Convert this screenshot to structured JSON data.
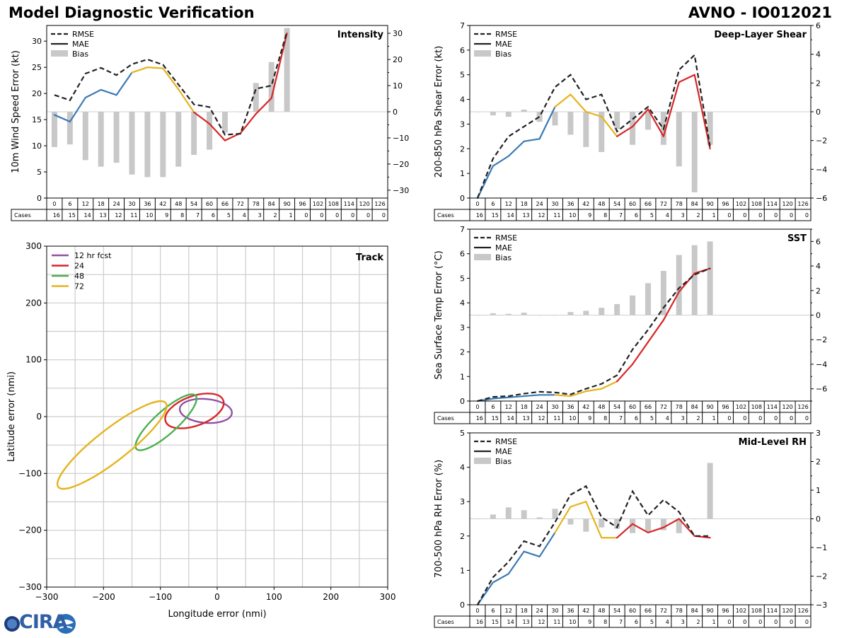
{
  "header": {
    "title_left": "Model Diagnostic Verification",
    "title_right": "AVNO - IO012021"
  },
  "logo": {
    "text": "CIRA",
    "icon_name": "cira-globe-logo"
  },
  "colors": {
    "rmse": "#222222",
    "mae_early": "#3a7ab5",
    "mae_mid": "#e6b31e",
    "mae_late": "#d62728",
    "bias": "#c8c8c8",
    "track_12": "#944fa3",
    "track_24": "#d62728",
    "track_48": "#4caf50",
    "track_72": "#e6b31e",
    "grid": "#cccccc"
  },
  "legend_labels": {
    "rmse": "RMSE",
    "mae": "MAE",
    "bias": "Bias"
  },
  "cases_label": "Cases",
  "chart_data": [
    {
      "id": "intensity",
      "type": "line+bar",
      "title": "Intensity",
      "ylabel": "10m Wind Speed Error (kt)",
      "ylim": [
        0,
        33
      ],
      "yticks": [
        0,
        5,
        10,
        15,
        20,
        25,
        30
      ],
      "y2lim": [
        -33,
        33
      ],
      "y2ticks": [
        -30,
        -20,
        -10,
        0,
        10,
        20,
        30
      ],
      "x": [
        0,
        6,
        12,
        18,
        24,
        30,
        36,
        42,
        48,
        54,
        60,
        66,
        72,
        78,
        84,
        90
      ],
      "rmse": [
        19.7,
        18.7,
        23.8,
        24.9,
        23.5,
        25.6,
        26.5,
        25.5,
        21.7,
        17.9,
        17.4,
        12.1,
        12.3,
        20.9,
        21.5,
        31.8
      ],
      "mae": [
        15.9,
        14.6,
        19.2,
        20.7,
        19.7,
        24.0,
        25.0,
        24.8,
        20.8,
        16.4,
        14.2,
        11.0,
        12.4,
        16.1,
        19.1,
        31.5
      ],
      "bias": [
        -13.5,
        -12.5,
        -18.5,
        -21,
        -19.5,
        -24,
        -25,
        -25,
        -21,
        -16.5,
        -14.5,
        -8,
        0,
        11,
        19,
        32
      ],
      "categories": [
        "0",
        "6",
        "12",
        "18",
        "24",
        "30",
        "36",
        "42",
        "48",
        "54",
        "60",
        "66",
        "72",
        "78",
        "84",
        "90",
        "96",
        "102",
        "108",
        "114",
        "120",
        "126"
      ],
      "cases": [
        16,
        15,
        14,
        13,
        12,
        11,
        10,
        9,
        8,
        7,
        6,
        5,
        4,
        3,
        2,
        1,
        0,
        0,
        0,
        0,
        0,
        0
      ]
    },
    {
      "id": "shear",
      "type": "line+bar",
      "title": "Deep-Layer Shear",
      "ylabel": "200-850 hPa Shear Error (kt)",
      "ylim": [
        0,
        7
      ],
      "yticks": [
        0,
        1,
        2,
        3,
        4,
        5,
        6,
        7
      ],
      "y2lim": [
        -6,
        6
      ],
      "y2ticks": [
        -6,
        -4,
        -2,
        0,
        2,
        4,
        6
      ],
      "x": [
        0,
        6,
        12,
        18,
        24,
        30,
        36,
        42,
        48,
        54,
        60,
        66,
        72,
        78,
        84,
        90
      ],
      "rmse": [
        0.0,
        1.6,
        2.5,
        2.9,
        3.3,
        4.5,
        5.0,
        4.0,
        4.2,
        2.7,
        3.2,
        3.7,
        2.8,
        5.2,
        5.8,
        2.1
      ],
      "mae": [
        0.0,
        1.3,
        1.7,
        2.3,
        2.4,
        3.7,
        4.2,
        3.5,
        3.3,
        2.5,
        2.9,
        3.6,
        2.5,
        4.7,
        5.0,
        2.0
      ],
      "bias": [
        0.0,
        -0.25,
        -0.35,
        0.15,
        -0.7,
        -0.95,
        -1.6,
        -2.45,
        -2.8,
        -1.2,
        -2.3,
        -1.25,
        -2.3,
        -3.8,
        -5.6,
        -2.3
      ],
      "categories": [
        "0",
        "6",
        "12",
        "18",
        "24",
        "30",
        "36",
        "42",
        "48",
        "54",
        "60",
        "66",
        "72",
        "78",
        "84",
        "90",
        "96",
        "102",
        "108",
        "114",
        "120",
        "126"
      ],
      "cases": [
        16,
        15,
        14,
        13,
        12,
        11,
        10,
        9,
        8,
        7,
        6,
        5,
        4,
        3,
        2,
        1,
        0,
        0,
        0,
        0,
        0,
        0
      ]
    },
    {
      "id": "sst",
      "type": "line+bar",
      "title": "SST",
      "ylabel": "Sea Surface Temp Error (°C)",
      "ylim": [
        0,
        7
      ],
      "yticks": [
        0,
        1,
        2,
        3,
        4,
        5,
        6,
        7
      ],
      "y2lim": [
        -7,
        7
      ],
      "y2ticks": [
        -6,
        -4,
        -2,
        0,
        2,
        4,
        6
      ],
      "x": [
        0,
        6,
        12,
        18,
        24,
        30,
        36,
        42,
        48,
        54,
        60,
        66,
        72,
        78,
        84,
        90
      ],
      "rmse": [
        0.0,
        0.17,
        0.2,
        0.3,
        0.38,
        0.35,
        0.27,
        0.5,
        0.7,
        1.05,
        2.1,
        2.9,
        3.8,
        4.6,
        5.15,
        5.4
      ],
      "mae": [
        0.0,
        0.1,
        0.15,
        0.2,
        0.25,
        0.25,
        0.2,
        0.4,
        0.5,
        0.8,
        1.5,
        2.4,
        3.3,
        4.45,
        5.2,
        5.4
      ],
      "bias": [
        0.0,
        0.15,
        0.1,
        0.2,
        0.0,
        0.0,
        0.25,
        0.35,
        0.6,
        0.9,
        1.6,
        2.6,
        3.6,
        4.9,
        5.7,
        6.0
      ],
      "categories": [
        "0",
        "6",
        "12",
        "18",
        "24",
        "30",
        "36",
        "42",
        "48",
        "54",
        "60",
        "66",
        "72",
        "78",
        "84",
        "90",
        "96",
        "102",
        "108",
        "114",
        "120",
        "126"
      ],
      "cases": [
        16,
        15,
        14,
        13,
        12,
        11,
        10,
        9,
        8,
        7,
        6,
        5,
        4,
        3,
        2,
        1,
        0,
        0,
        0,
        0,
        0,
        0
      ]
    },
    {
      "id": "rh",
      "type": "line+bar",
      "title": "Mid-Level RH",
      "ylabel": "700-500 hPa RH Error (%)",
      "ylim": [
        0,
        5
      ],
      "yticks": [
        0,
        1,
        2,
        3,
        4,
        5
      ],
      "y2lim": [
        -3,
        3
      ],
      "y2ticks": [
        -3,
        -2,
        -1,
        0,
        1,
        2,
        3
      ],
      "x": [
        0,
        6,
        12,
        18,
        24,
        30,
        36,
        42,
        48,
        54,
        60,
        66,
        72,
        78,
        84,
        90
      ],
      "rmse": [
        0.0,
        0.8,
        1.25,
        1.85,
        1.7,
        2.4,
        3.2,
        3.45,
        2.55,
        2.25,
        3.3,
        2.6,
        3.05,
        2.7,
        2.0,
        2.0
      ],
      "mae": [
        0.0,
        0.65,
        0.9,
        1.55,
        1.4,
        2.1,
        2.85,
        3.0,
        1.95,
        1.95,
        2.35,
        2.1,
        2.25,
        2.5,
        2.0,
        1.95
      ],
      "bias": [
        0.0,
        0.15,
        0.4,
        0.3,
        0.05,
        0.35,
        -0.2,
        -0.45,
        -0.3,
        -0.35,
        -0.5,
        -0.45,
        -0.4,
        -0.5,
        0.0,
        1.95
      ],
      "categories": [
        "0",
        "6",
        "12",
        "18",
        "24",
        "30",
        "36",
        "42",
        "48",
        "54",
        "60",
        "66",
        "72",
        "78",
        "84",
        "90",
        "96",
        "102",
        "108",
        "114",
        "120",
        "126"
      ],
      "cases": [
        16,
        15,
        14,
        13,
        12,
        11,
        10,
        9,
        8,
        7,
        6,
        5,
        4,
        3,
        2,
        1,
        0,
        0,
        0,
        0,
        0,
        0
      ]
    },
    {
      "id": "track",
      "type": "ellipse",
      "title": "Track",
      "xlabel": "Longitude error (nmi)",
      "ylabel": "Latitude error (nmi)",
      "xlim": [
        -300,
        300
      ],
      "ylim": [
        -300,
        300
      ],
      "xticks": [
        -300,
        -200,
        -100,
        0,
        100,
        200,
        300
      ],
      "yticks": [
        -300,
        -200,
        -100,
        0,
        100,
        200,
        300
      ],
      "tick_labels_x": [
        "−300",
        "−200",
        "−100",
        "0",
        "100",
        "200",
        "300"
      ],
      "tick_labels_y": [
        "−300",
        "−200",
        "−100",
        "0",
        "100",
        "200",
        "300"
      ],
      "grid_step": 50,
      "series": [
        {
          "name": "12 hr fcst",
          "cx": -20,
          "cy": 10,
          "semi_major": 46,
          "semi_minor": 21,
          "angle_deg": -5,
          "color_key": "track_12"
        },
        {
          "name": "24",
          "cx": -40,
          "cy": 10,
          "semi_major": 54,
          "semi_minor": 26,
          "angle_deg": 20,
          "color_key": "track_24"
        },
        {
          "name": "48",
          "cx": -90,
          "cy": -10,
          "semi_major": 70,
          "semi_minor": 20,
          "angle_deg": 42,
          "color_key": "track_48"
        },
        {
          "name": "72",
          "cx": -185,
          "cy": -50,
          "semi_major": 120,
          "semi_minor": 28,
          "angle_deg": 38,
          "color_key": "track_72"
        }
      ]
    }
  ]
}
